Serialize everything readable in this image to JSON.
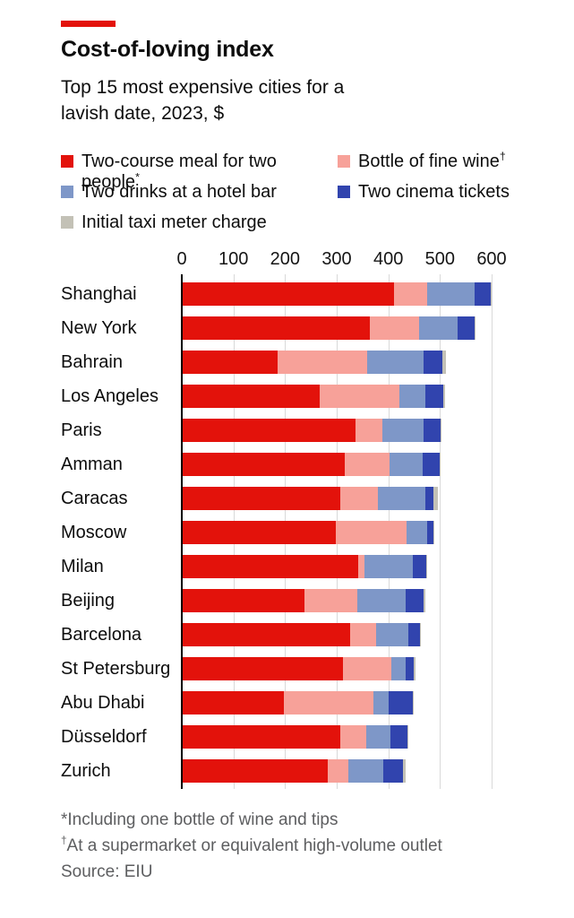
{
  "header": {
    "title": "Cost-of-loving index",
    "subtitle": "Top 15 most expensive cities for a lavish date, 2023, $"
  },
  "legend": {
    "items": [
      {
        "label": "Two-course meal for two people",
        "sup": "*",
        "color": "#E3120B"
      },
      {
        "label": "Bottle of fine wine",
        "sup": "†",
        "color": "#F7A199"
      },
      {
        "label": "Two drinks at a hotel bar",
        "sup": "",
        "color": "#7E97C8"
      },
      {
        "label": "Two cinema tickets",
        "sup": "",
        "color": "#3144AE"
      },
      {
        "label": "Initial taxi meter charge",
        "sup": "",
        "color": "#C3C1B6"
      }
    ]
  },
  "chart_data": {
    "type": "bar",
    "orientation": "horizontal",
    "stacked": true,
    "title": "Cost-of-loving index",
    "subtitle": "Top 15 most expensive cities for a lavish date, 2023, $",
    "unit": "$",
    "xlim": [
      0,
      600
    ],
    "x_ticks": [
      0,
      100,
      200,
      300,
      400,
      500,
      600
    ],
    "grid": "vertical",
    "legend_position": "top",
    "categories": [
      "Shanghai",
      "New York",
      "Bahrain",
      "Los Angeles",
      "Paris",
      "Amman",
      "Caracas",
      "Moscow",
      "Milan",
      "Beijing",
      "Barcelona",
      "St Petersburg",
      "Abu Dhabi",
      "Düsseldorf",
      "Zurich"
    ],
    "series": [
      {
        "name": "Two-course meal for two people*",
        "color": "#E3120B",
        "values": [
          411,
          364,
          186,
          267,
          336,
          315,
          307,
          299,
          341,
          237,
          326,
          312,
          198,
          307,
          283
        ]
      },
      {
        "name": "Bottle of fine wine†",
        "color": "#F7A199",
        "values": [
          64,
          95,
          173,
          155,
          52,
          88,
          72,
          136,
          13,
          103,
          50,
          94,
          174,
          50,
          39
        ]
      },
      {
        "name": "Two drinks at a hotel bar",
        "color": "#7E97C8",
        "values": [
          93,
          76,
          110,
          49,
          81,
          64,
          93,
          41,
          94,
          94,
          62,
          28,
          29,
          48,
          69
        ]
      },
      {
        "name": "Two cinema tickets",
        "color": "#3144AE",
        "values": [
          30,
          32,
          35,
          36,
          32,
          32,
          16,
          12,
          26,
          35,
          23,
          16,
          47,
          32,
          37
        ]
      },
      {
        "name": "Initial taxi meter charge",
        "color": "#C3C1B6",
        "values": [
          2,
          2,
          7,
          3,
          2,
          2,
          8,
          2,
          2,
          2,
          2,
          2,
          2,
          2,
          5
        ]
      }
    ],
    "totals": [
      600,
      569,
      511,
      510,
      503,
      501,
      496,
      490,
      476,
      471,
      463,
      452,
      450,
      439,
      433
    ]
  },
  "footnotes": {
    "lines": [
      {
        "sup": "",
        "text": "*Including one bottle of wine and tips"
      },
      {
        "sup": "†",
        "text": "At a supermarket or equivalent high-volume outlet"
      },
      {
        "sup": "",
        "text": "Source: EIU"
      }
    ]
  },
  "colors": {
    "accent_red": "#E3120B",
    "gridline": "#D9D9D9",
    "axis": "#000000",
    "text": "#0D0D0D",
    "footnote_text": "#5D5E60",
    "background": "#FFFFFF"
  }
}
